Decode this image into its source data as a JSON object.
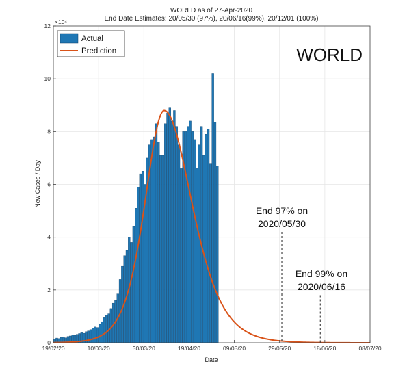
{
  "chart_data": {
    "type": "bar",
    "title": "WORLD as of 27-Apr-2020",
    "subtitle": "End Date Estimates: 20/05/30 (97%), 20/06/16(99%), 20/12/01 (100%)",
    "region_label": "WORLD",
    "xlabel": "Date",
    "ylabel": "New Cases / Day",
    "y_exponent_label": "×10⁴",
    "ylim": [
      0,
      12
    ],
    "y_ticks": [
      0,
      2,
      4,
      6,
      8,
      10,
      12
    ],
    "x_start": "2020-02-19",
    "x_end": "2020-07-08",
    "x_ticks": [
      {
        "date": "2020-02-19",
        "label": "19/02/20"
      },
      {
        "date": "2020-03-10",
        "label": "10/03/20"
      },
      {
        "date": "2020-03-30",
        "label": "30/03/20"
      },
      {
        "date": "2020-04-19",
        "label": "19/04/20"
      },
      {
        "date": "2020-05-09",
        "label": "09/05/20"
      },
      {
        "date": "2020-05-29",
        "label": "29/05/20"
      },
      {
        "date": "2020-06-18",
        "label": "18/06/20"
      },
      {
        "date": "2020-07-08",
        "label": "08/07/20"
      }
    ],
    "grid": true,
    "legend_position": "top-left",
    "series": [
      {
        "name": "Actual",
        "kind": "bar",
        "color": "#1f77b4",
        "start_date": "2020-02-19",
        "values": [
          0.15,
          0.18,
          0.16,
          0.2,
          0.22,
          0.19,
          0.24,
          0.26,
          0.3,
          0.28,
          0.32,
          0.35,
          0.38,
          0.36,
          0.42,
          0.45,
          0.5,
          0.55,
          0.6,
          0.58,
          0.7,
          0.8,
          0.95,
          1.05,
          1.1,
          1.3,
          1.5,
          1.6,
          1.85,
          2.4,
          2.9,
          3.3,
          3.5,
          4.0,
          3.8,
          4.4,
          5.1,
          5.9,
          6.4,
          6.5,
          6.0,
          7.0,
          7.5,
          7.7,
          7.8,
          8.3,
          7.6,
          7.1,
          7.1,
          8.3,
          8.7,
          8.9,
          8.4,
          8.8,
          8.2,
          7.5,
          6.6,
          8.0,
          8.0,
          8.2,
          8.4,
          8.0,
          7.7,
          6.6,
          7.5,
          8.2,
          7.1,
          7.9,
          8.1,
          6.8,
          10.2,
          8.35,
          6.7
        ],
        "markers": [
          {
            "index": 0,
            "date": "2020-02-19"
          },
          {
            "index": 72,
            "date": "2020-05-01"
          }
        ]
      },
      {
        "name": "Prediction",
        "kind": "line",
        "color": "#d95319",
        "peak_date": "2020-04-08",
        "peak_value": 8.8
      }
    ],
    "annotations": [
      {
        "text_line1": "End 97% on",
        "text_line2": "2020/05/30",
        "date": "2020-05-30",
        "y_top": 4.2
      },
      {
        "text_line1": "End 99% on",
        "text_line2": "2020/06/16",
        "date": "2020-06-16",
        "y_top": 1.8
      }
    ]
  }
}
